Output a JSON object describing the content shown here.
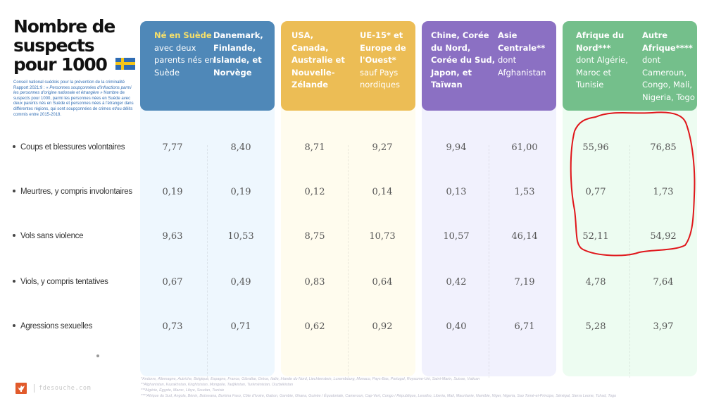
{
  "title": {
    "lines": [
      "Nombre de",
      "suspects",
      "pour 1000"
    ],
    "flag": "sweden-flag-icon"
  },
  "source": {
    "line1": "Conseil national suédois pour la prévention de la criminalité",
    "line2_prefix": "Rapport 2021:9 : ",
    "line2_italic": "« Personnes soupçonnées d'infractions parmi les personnes d'origine nationale et étrangère »",
    "body": "Nombre de suspects pour 1000, parmi les personnes nées en Suède avec deux parents nés en Suède et personnes nées à l'étranger dans différentes régions, qui sont soupçonnées de crimes et/ou délits commis entre 2015-2018."
  },
  "colors": {
    "blue": "#4f88b8",
    "yellow": "#ecbd55",
    "purple": "#8b70c3",
    "green": "#74bf8b",
    "highlight_circle": "#e0161b",
    "highlight_text": "#f6e06a"
  },
  "groups": [
    {
      "name": "blue",
      "columns": [
        {
          "bold": "",
          "highlight": "Né en Suède",
          "normal": "avec deux parents nés en Suède"
        },
        {
          "bold": "Danemark, Finlande, Islande, et Norvège",
          "normal": ""
        }
      ]
    },
    {
      "name": "yellow",
      "columns": [
        {
          "bold": "USA, Canada, Australie et Nouvelle-Zélande",
          "normal": ""
        },
        {
          "bold": "UE-15* et Europe de l'Ouest*",
          "normal": "sauf Pays nordiques"
        }
      ]
    },
    {
      "name": "purple",
      "columns": [
        {
          "bold": "Chine, Corée du Nord, Corée du Sud, Japon, et Taïwan",
          "normal": ""
        },
        {
          "bold": "Asie Centrale**",
          "normal": "dont Afghanistan"
        }
      ]
    },
    {
      "name": "green",
      "columns": [
        {
          "bold": "Afrique du Nord***",
          "normal": "dont Algérie, Maroc et Tunisie"
        },
        {
          "bold": "Autre Afrique****",
          "normal": "dont Cameroun, Congo, Mali, Nigeria, Togo"
        }
      ]
    }
  ],
  "chart_data": {
    "type": "table",
    "title": "Nombre de suspects pour 1000",
    "columns": [
      "Né en Suède avec deux parents nés en Suède",
      "Danemark, Finlande, Islande, et Norvège",
      "USA, Canada, Australie et Nouvelle-Zélande",
      "UE-15* et Europe de l'Ouest* sauf Pays nordiques",
      "Chine, Corée du Nord, Corée du Sud, Japon, et Taïwan",
      "Asie Centrale** dont Afghanistan",
      "Afrique du Nord*** dont Algérie, Maroc et Tunisie",
      "Autre Afrique**** dont Cameroun, Congo, Mali, Nigeria, Togo"
    ],
    "rows": [
      {
        "label": "Coups et blessures volontaires",
        "values": [
          "7,77",
          "8,40",
          "8,71",
          "9,27",
          "9,94",
          "61,00",
          "55,96",
          "76,85"
        ]
      },
      {
        "label": "Meurtres, y compris involontaires",
        "values": [
          "0,19",
          "0,19",
          "0,12",
          "0,14",
          "0,13",
          "1,53",
          "0,77",
          "1,73"
        ]
      },
      {
        "label": "Vols sans violence",
        "values": [
          "9,63",
          "10,53",
          "8,75",
          "10,73",
          "10,57",
          "46,14",
          "52,11",
          "54,92"
        ]
      },
      {
        "label": "Viols, y compris tentatives",
        "values": [
          "0,67",
          "0,49",
          "0,83",
          "0,64",
          "0,42",
          "7,19",
          "4,78",
          "7,64"
        ]
      },
      {
        "label": "Agressions sexuelles",
        "values": [
          "0,73",
          "0,71",
          "0,62",
          "0,92",
          "0,40",
          "6,71",
          "5,28",
          "3,97"
        ]
      }
    ],
    "annotations": [
      "Red hand-drawn circle around Afrique du Nord and Autre Afrique values for the first three rows"
    ]
  },
  "footnotes": [
    "*Andorre, Allemagne, Autriche, Belgique, Espagne, France, Gibraltar, Grèce, Italie, Irlande du Nord, Liechtenstein, Luxembourg, Monaco, Pays-Bas, Portugal, Royaume-Uni, Saint-Marin, Suisse, Vatican",
    "**Afghanistan, Kazakhstan, Kirghizistan, Mongolie, Tadjikistan, Turkménistan, Ouzbékistan",
    "***Algérie, Égypte, Maroc, Libye, Soudan, Tunisie",
    "****Afrique du Sud, Angola, Bénin, Botswana, Burkina Faso, Côte d'Ivoire, Gabon, Gambie, Ghana, Guinée / Équatoriale, Cameroun, Cap-Vert, Congo / République, Lesotho, Liberia, Mali, Mauritanie, Namibie, Niger, Nigeria, Sao Tomé-et-Principe, Sénégal, Sierra Leone, Tchad, Togo"
  ],
  "footer": {
    "logo": "rooster-logo-icon",
    "site": "fdesouche.com"
  }
}
